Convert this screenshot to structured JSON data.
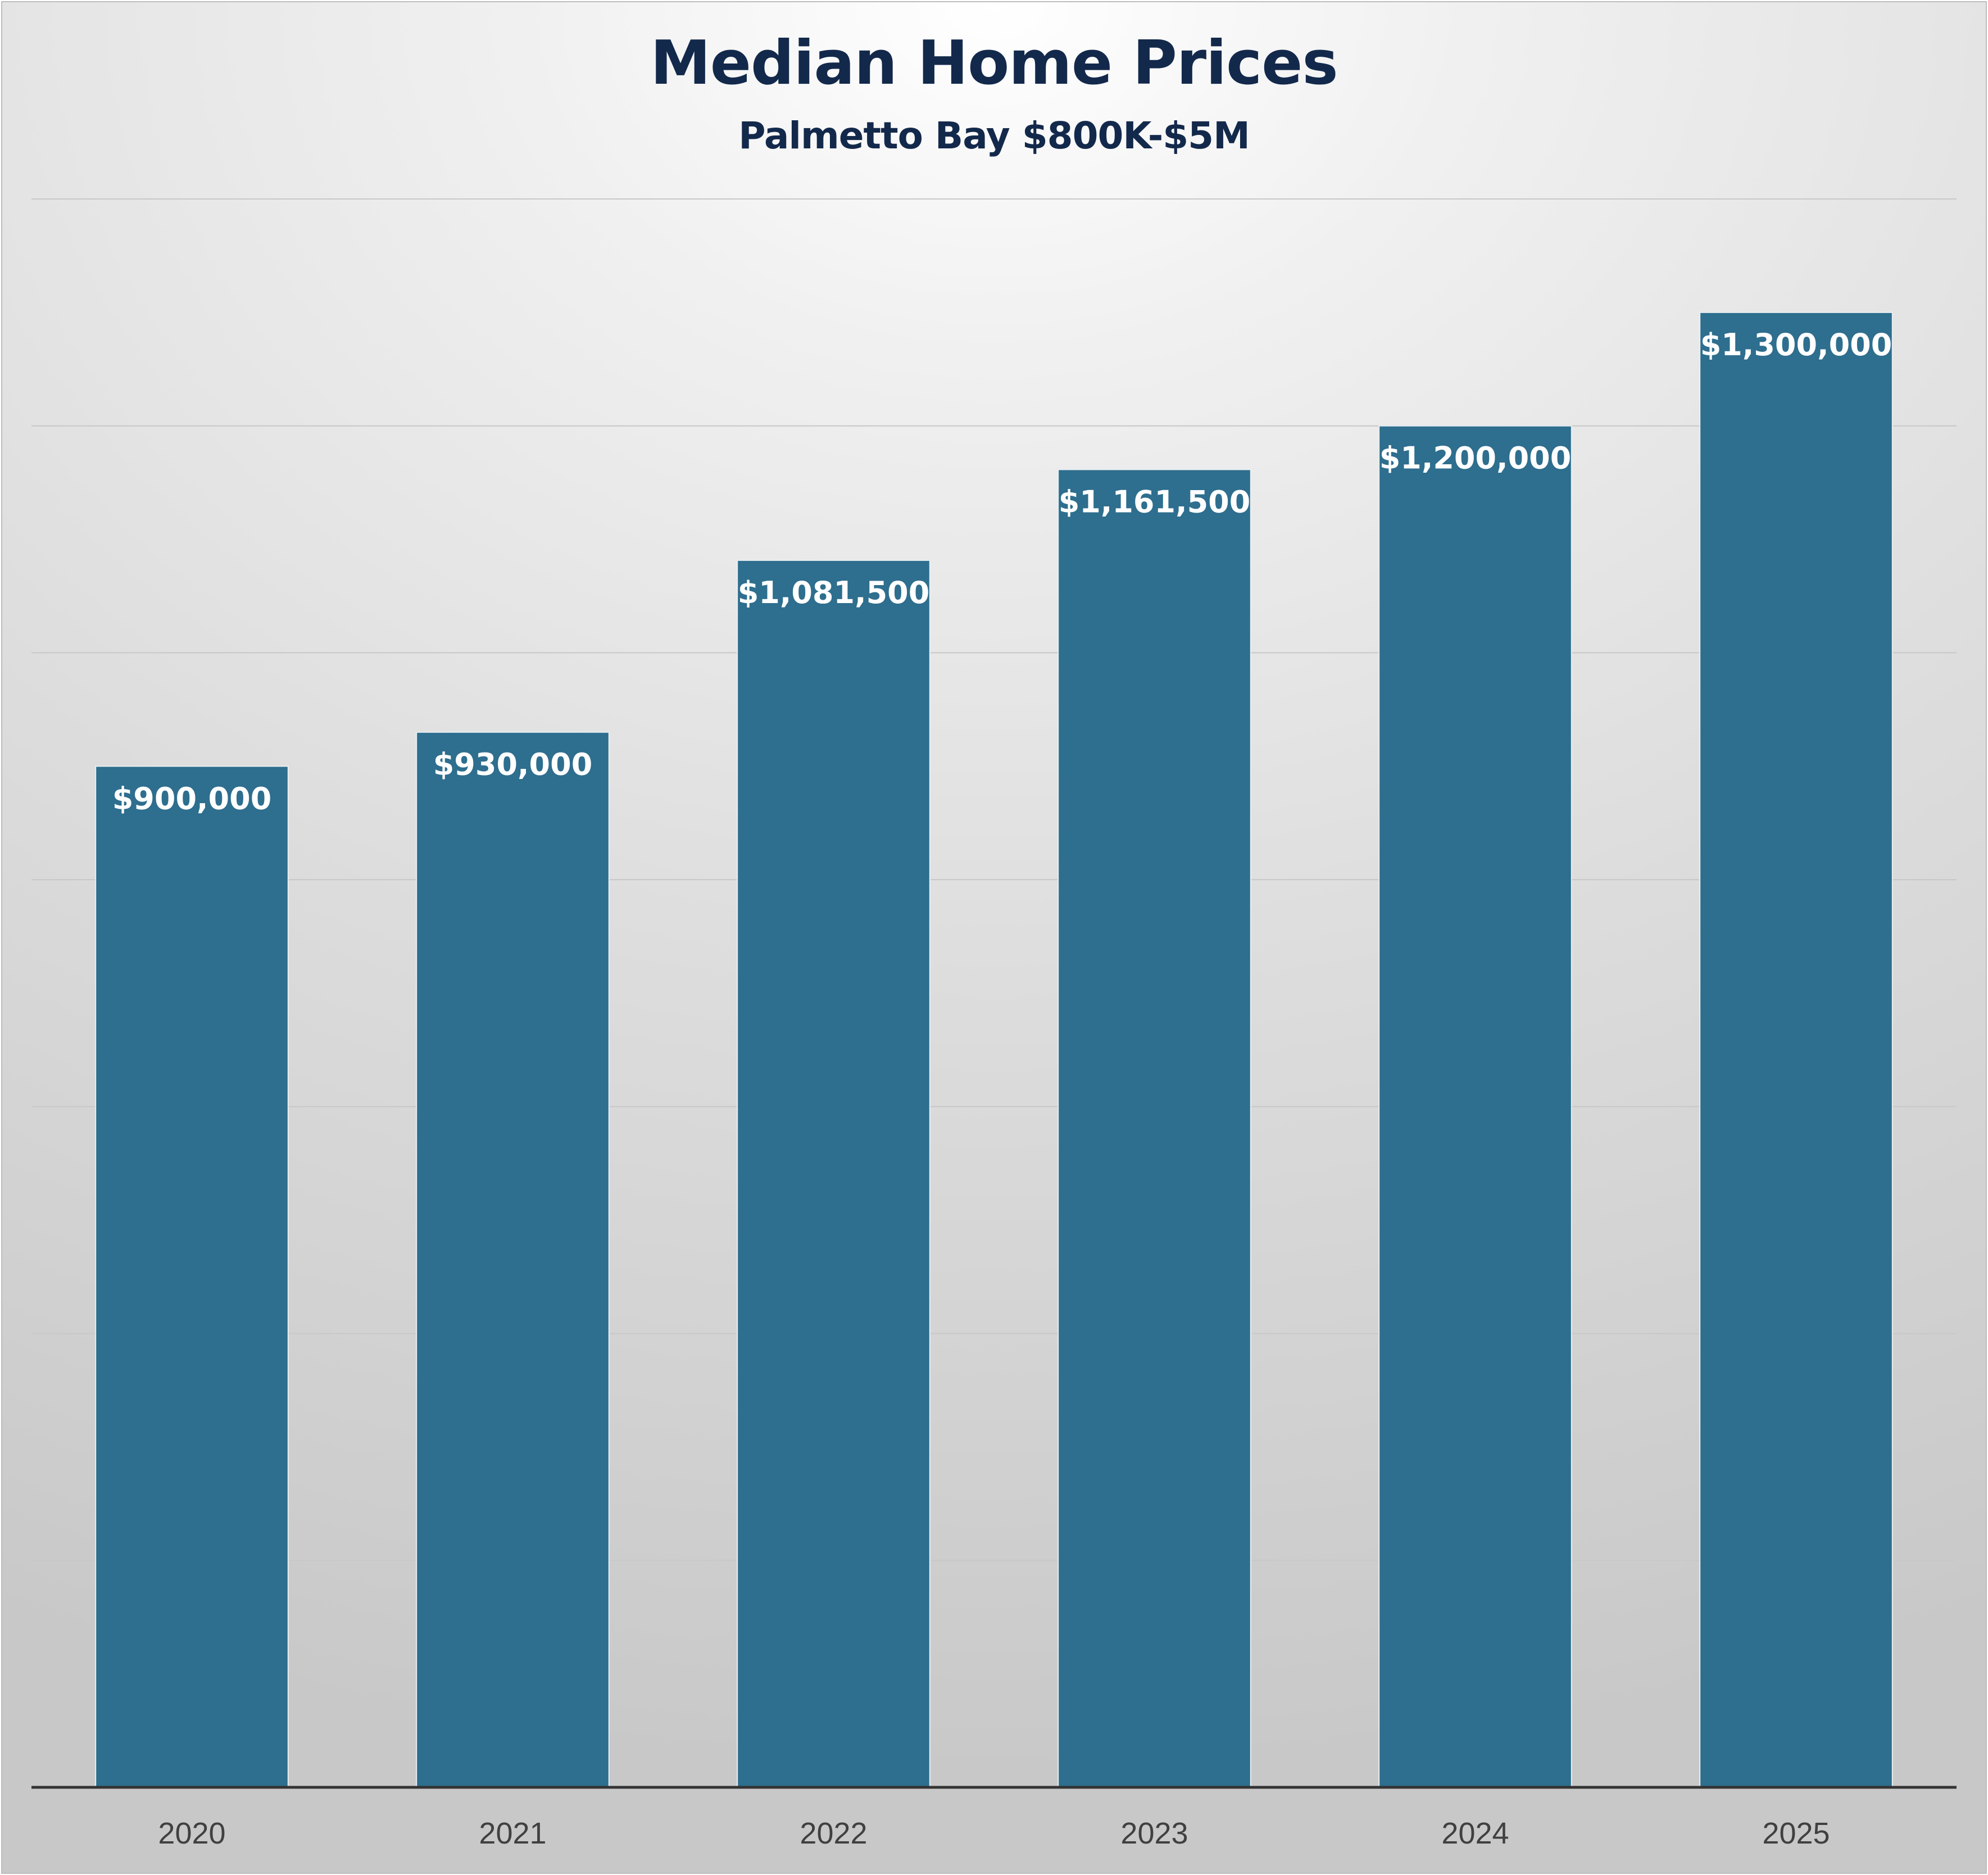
{
  "chart_data": {
    "type": "bar",
    "title": "Median Home Prices",
    "subtitle": "Palmetto Bay $800K-$5M",
    "categories": [
      "2020",
      "2021",
      "2022",
      "2023",
      "2024",
      "2025"
    ],
    "values": [
      900000,
      930000,
      1081500,
      1161500,
      1200000,
      1300000
    ],
    "value_labels": [
      "$900,000",
      "$930,000",
      "$1,081,500",
      "$1,161,500",
      "$1,200,000",
      "$1,300,000"
    ],
    "ylim": [
      0,
      1400000
    ],
    "gridline_interval": 200000,
    "grid": true,
    "y_axis_labels_shown": false,
    "legend": "none",
    "xlabel": "",
    "ylabel": "",
    "colors": {
      "bar": "#2e6e8e",
      "data_label": "#ffffff",
      "title": "#13294b",
      "tick_label": "#404040",
      "gridline": "#c8c8c8",
      "axis_line": "#333333"
    }
  }
}
